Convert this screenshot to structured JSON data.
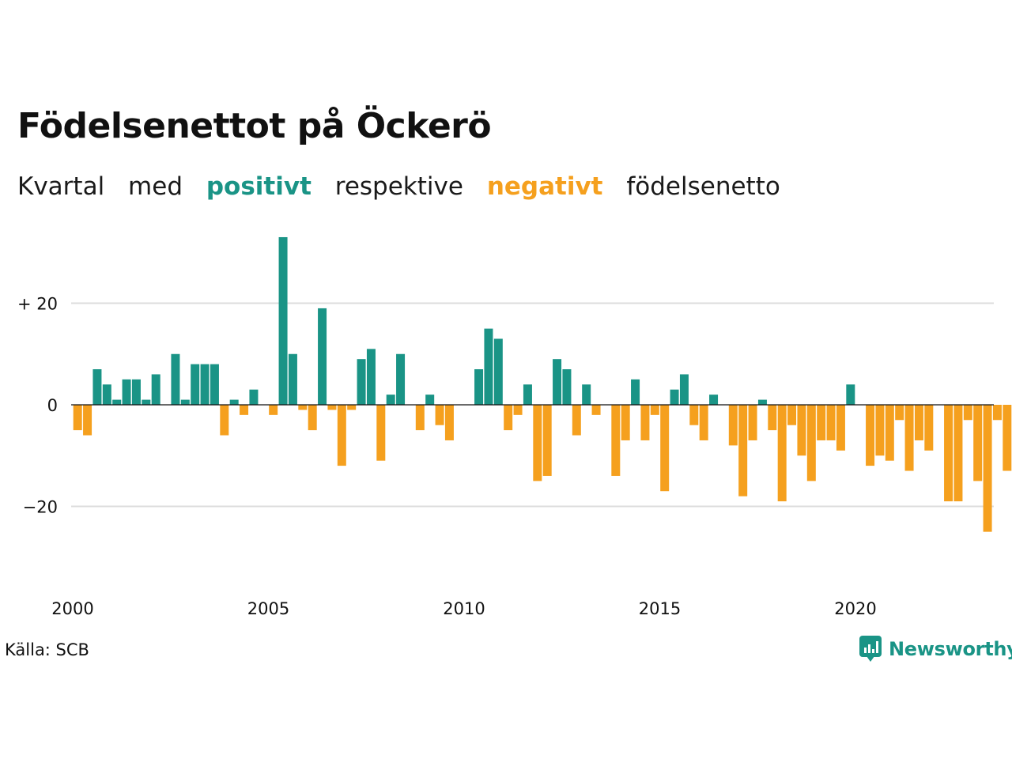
{
  "header": {
    "title": "Födelsenettot på Öckerö",
    "subtitle_parts": [
      "Kvartal",
      "med",
      "positivt",
      "respektive",
      "negativt",
      "födelsenetto"
    ]
  },
  "footer": {
    "source": "Källa: SCB",
    "brand": "Newsworthy"
  },
  "colors": {
    "positive": "#1a9486",
    "negative": "#f5a01e",
    "grid": "#dddddd"
  },
  "chart_data": {
    "type": "bar",
    "title": "Födelsenettot på Öckerö",
    "xlabel": "",
    "ylabel": "",
    "ylim": [
      -30,
      35
    ],
    "grid": true,
    "y_ticks": [
      {
        "value": 20,
        "label": "+ 20"
      },
      {
        "value": 0,
        "label": "0"
      },
      {
        "value": -20,
        "label": "−20"
      }
    ],
    "x_ticks": [
      {
        "value": 2000,
        "label": "2000"
      },
      {
        "value": 2005,
        "label": "2005"
      },
      {
        "value": 2010,
        "label": "2010"
      },
      {
        "value": 2015,
        "label": "2015"
      },
      {
        "value": 2020,
        "label": "2020"
      }
    ],
    "categories": [
      "2000K1",
      "2000K2",
      "2000K3",
      "2000K4",
      "2001K1",
      "2001K2",
      "2001K3",
      "2001K4",
      "2002K1",
      "2002K2",
      "2002K3",
      "2002K4",
      "2003K1",
      "2003K2",
      "2003K3",
      "2003K4",
      "2004K1",
      "2004K2",
      "2004K3",
      "2004K4",
      "2005K1",
      "2005K2",
      "2005K3",
      "2005K4",
      "2006K1",
      "2006K2",
      "2006K3",
      "2006K4",
      "2007K1",
      "2007K2",
      "2007K3",
      "2007K4",
      "2008K1",
      "2008K2",
      "2008K3",
      "2008K4",
      "2009K1",
      "2009K2",
      "2009K3",
      "2009K4",
      "2010K1",
      "2010K2",
      "2010K3",
      "2010K4",
      "2011K1",
      "2011K2",
      "2011K3",
      "2011K4",
      "2012K1",
      "2012K2",
      "2012K3",
      "2012K4",
      "2013K1",
      "2013K2",
      "2013K3",
      "2013K4",
      "2014K1",
      "2014K2",
      "2014K3",
      "2014K4",
      "2015K1",
      "2015K2",
      "2015K3",
      "2015K4",
      "2016K1",
      "2016K2",
      "2016K3",
      "2016K4",
      "2017K1",
      "2017K2",
      "2017K3",
      "2017K4",
      "2018K1",
      "2018K2",
      "2018K3",
      "2018K4",
      "2019K1",
      "2019K2",
      "2019K3",
      "2019K4",
      "2020K1",
      "2020K2",
      "2020K3",
      "2020K4",
      "2021K1",
      "2021K2",
      "2021K3",
      "2021K4",
      "2022K1",
      "2022K2",
      "2022K3",
      "2022K4",
      "2023K1",
      "2023K2",
      "2023K3",
      "2023K4"
    ],
    "values": [
      -5,
      -6,
      7,
      4,
      1,
      5,
      5,
      1,
      6,
      0,
      10,
      1,
      8,
      8,
      8,
      -6,
      1,
      -2,
      3,
      0,
      -2,
      33,
      10,
      -1,
      -5,
      19,
      -1,
      -12,
      -1,
      9,
      11,
      -11,
      2,
      10,
      0,
      -5,
      2,
      -4,
      -7,
      0,
      0,
      7,
      15,
      13,
      -5,
      -2,
      4,
      -15,
      -14,
      9,
      7,
      -6,
      4,
      -2,
      0,
      -14,
      -7,
      5,
      -7,
      -2,
      -17,
      3,
      6,
      -4,
      -7,
      2,
      0,
      -8,
      -18,
      -7,
      1,
      -5,
      -19,
      -4,
      -10,
      -15,
      -7,
      -7,
      -9,
      4,
      0,
      -12,
      -10,
      -11,
      -3,
      -13,
      -7,
      -9,
      0,
      -19,
      -19,
      -3,
      -15,
      -25,
      -3,
      -13
    ]
  }
}
